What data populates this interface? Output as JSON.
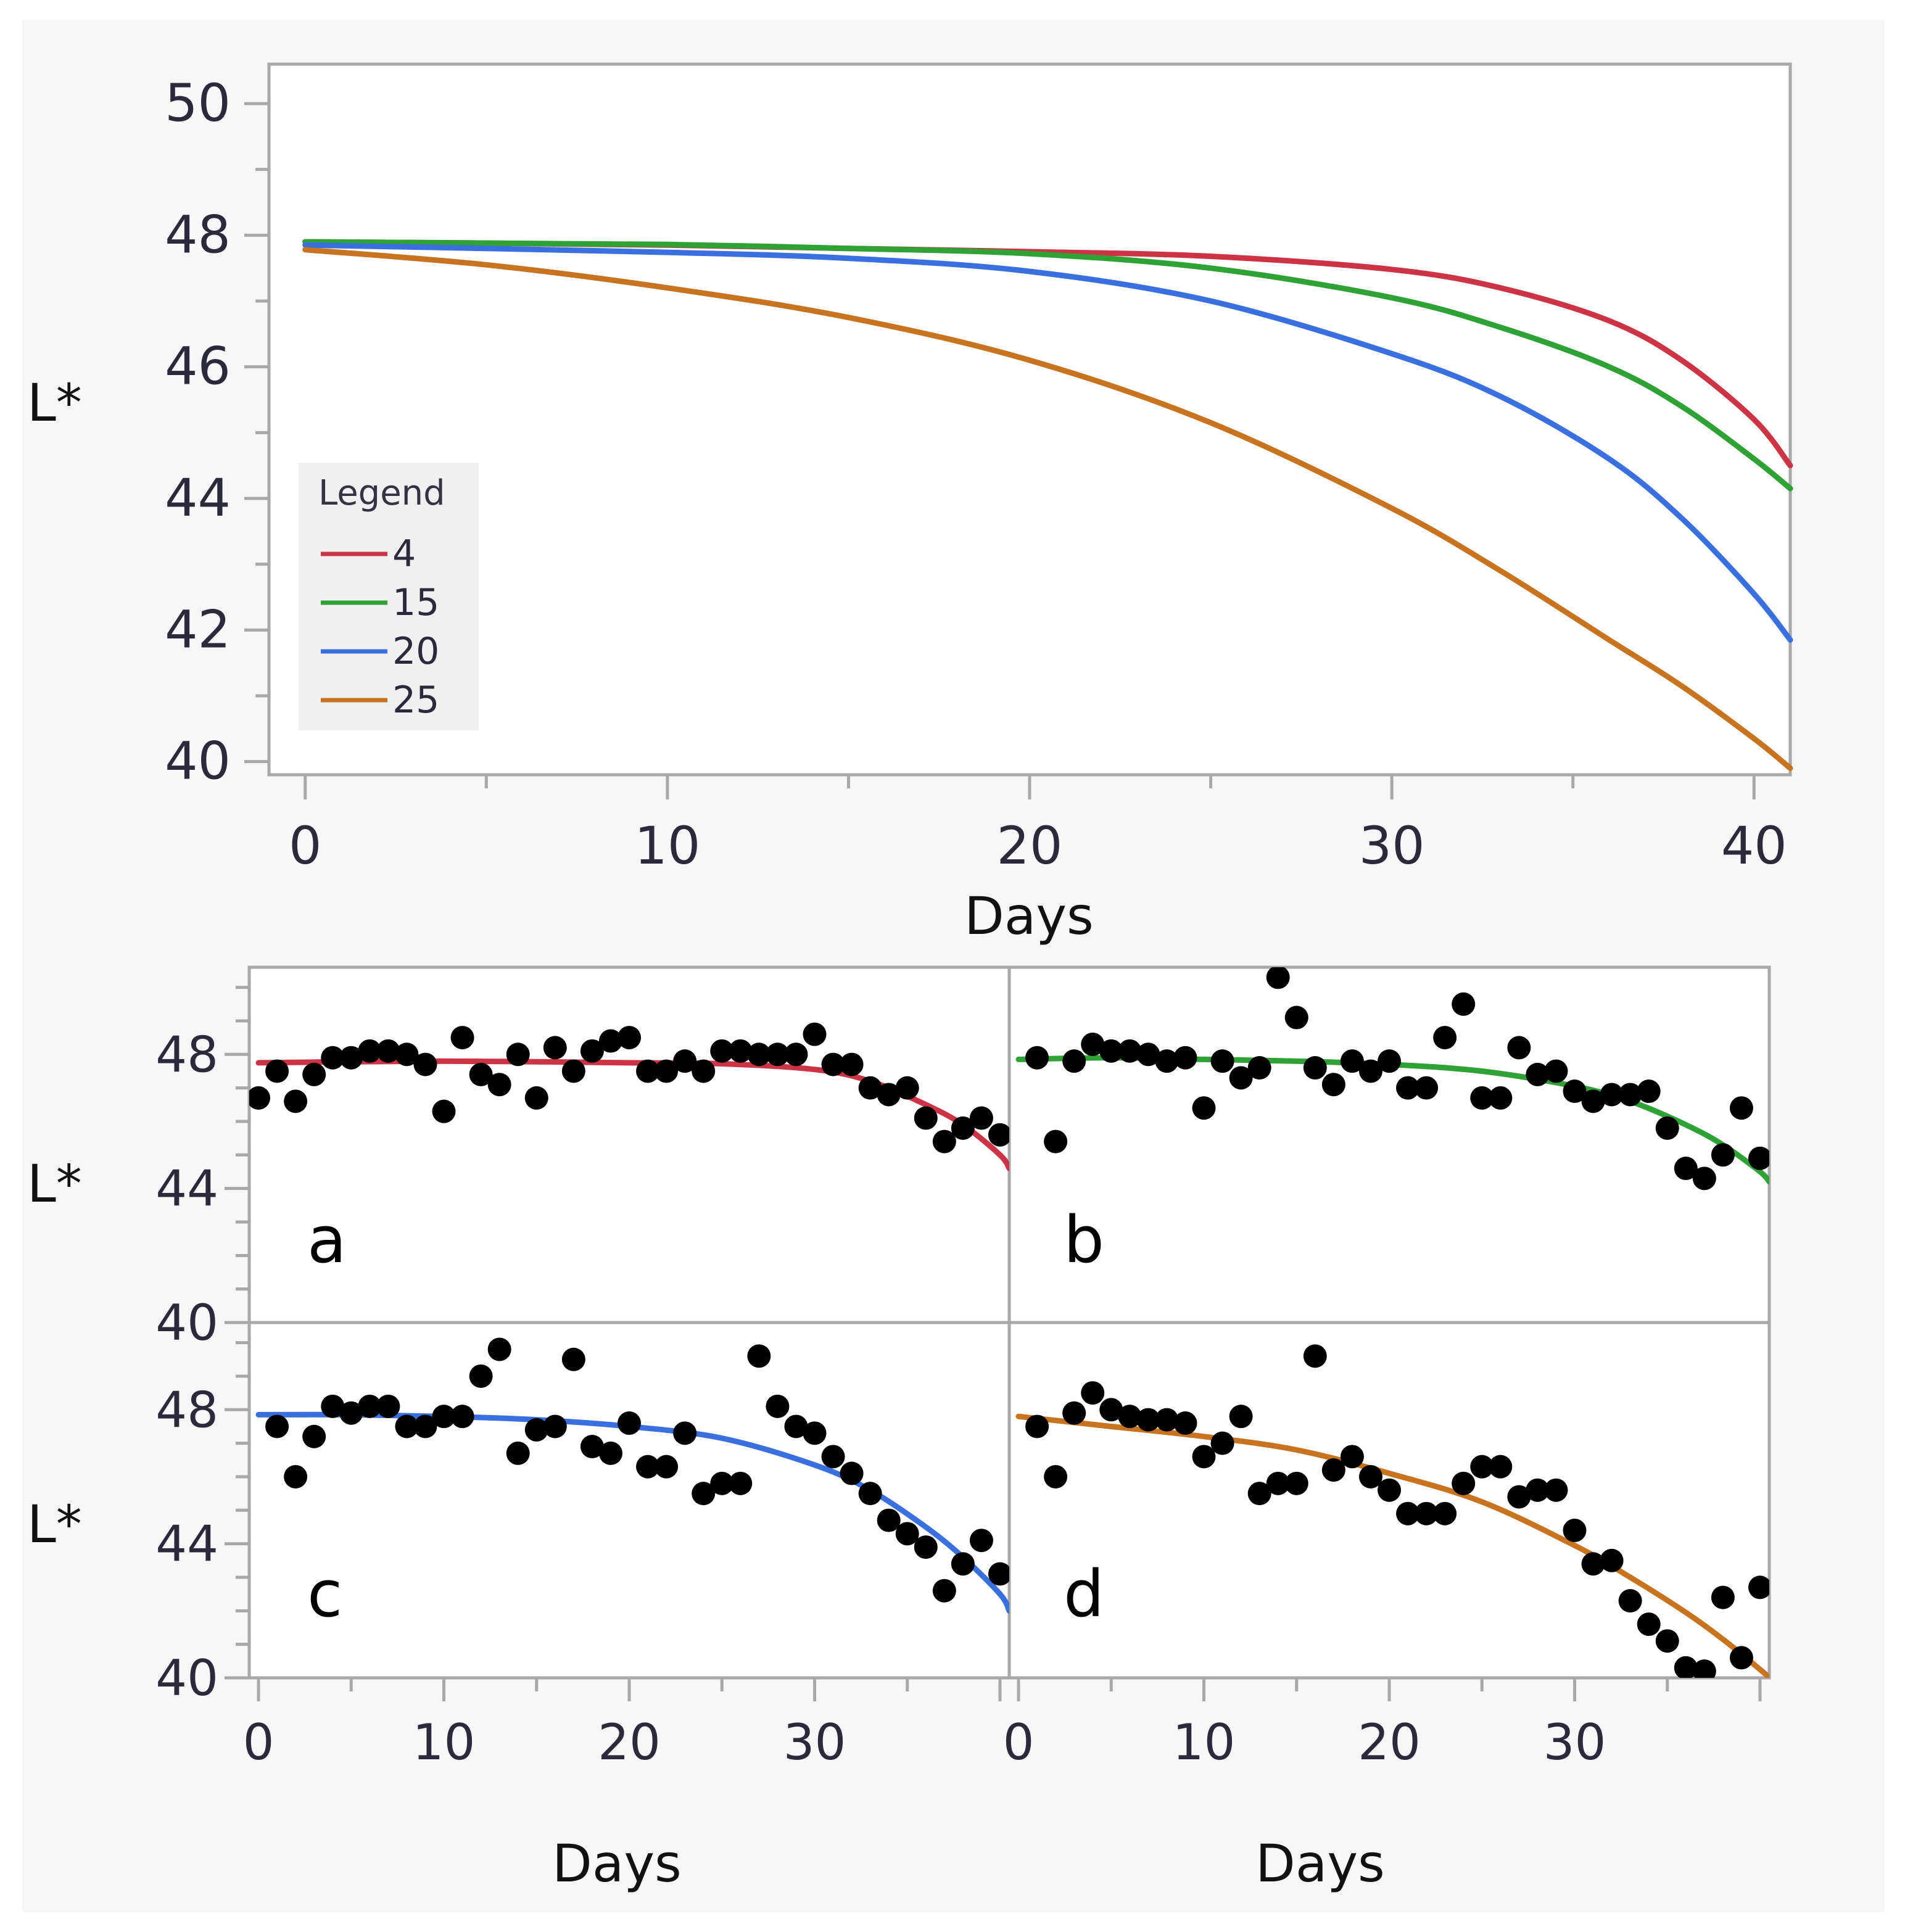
{
  "colors": {
    "figure_bg": "#f7f7f7",
    "plot_bg": "#ffffff",
    "frame": "#a8a8a8",
    "tick_label": "#2a2a3a",
    "axis_title": "#111111",
    "legend_bg": "#f0f0f0",
    "point": "#000000"
  },
  "chart_data": [
    {
      "id": "overview",
      "type": "line",
      "title": "",
      "xlabel": "Days",
      "ylabel": "L*",
      "xlim": [
        -1,
        41
      ],
      "ylim": [
        39.8,
        50.6
      ],
      "xticks": [
        0,
        10,
        20,
        30,
        40
      ],
      "yticks": [
        40,
        42,
        44,
        46,
        48,
        50
      ],
      "legend": {
        "title": "Legend",
        "position": "lower-left",
        "entries": [
          {
            "label": "4",
            "color": "#cc3344"
          },
          {
            "label": "15",
            "color": "#2fa236"
          },
          {
            "label": "20",
            "color": "#3a6fe0"
          },
          {
            "label": "25",
            "color": "#c8731f"
          }
        ]
      },
      "series": [
        {
          "name": "4",
          "color": "#cc3344",
          "x": [
            0,
            5,
            10,
            15,
            20,
            25,
            30,
            33,
            36,
            38,
            40,
            41
          ],
          "y": [
            47.9,
            47.88,
            47.85,
            47.8,
            47.75,
            47.68,
            47.48,
            47.2,
            46.7,
            46.1,
            45.2,
            44.5
          ]
        },
        {
          "name": "15",
          "color": "#2fa236",
          "x": [
            0,
            5,
            10,
            15,
            20,
            25,
            30,
            33,
            36,
            38,
            40,
            41
          ],
          "y": [
            47.9,
            47.88,
            47.86,
            47.8,
            47.72,
            47.5,
            47.05,
            46.6,
            46.0,
            45.4,
            44.6,
            44.15
          ]
        },
        {
          "name": "20",
          "color": "#3a6fe0",
          "x": [
            0,
            5,
            10,
            15,
            20,
            25,
            30,
            33,
            36,
            38,
            40,
            41
          ],
          "y": [
            47.85,
            47.8,
            47.74,
            47.65,
            47.45,
            47.0,
            46.2,
            45.55,
            44.6,
            43.7,
            42.55,
            41.85
          ]
        },
        {
          "name": "25",
          "color": "#c8731f",
          "x": [
            0,
            5,
            10,
            15,
            20,
            25,
            30,
            33,
            36,
            38,
            40,
            41
          ],
          "y": [
            47.78,
            47.55,
            47.2,
            46.75,
            46.1,
            45.15,
            43.85,
            42.9,
            41.85,
            41.15,
            40.35,
            39.9
          ]
        }
      ]
    },
    {
      "id": "a",
      "type": "scatter",
      "panel_label": "a",
      "fit_color": "#cc3344",
      "xlim": [
        -0.5,
        40.5
      ],
      "ylim": [
        40,
        50.6
      ],
      "yticks": [
        40,
        44,
        48
      ],
      "points_x": [
        0,
        1,
        2,
        3,
        4,
        5,
        6,
        7,
        8,
        9,
        10,
        11,
        12,
        13,
        14,
        15,
        16,
        17,
        18,
        19,
        20,
        21,
        22,
        23,
        24,
        25,
        26,
        27,
        28,
        29,
        30,
        31,
        32,
        33,
        34,
        35,
        36,
        37,
        38,
        39,
        40
      ],
      "points_y": [
        46.7,
        47.5,
        46.6,
        47.4,
        47.9,
        47.9,
        48.1,
        48.1,
        48.0,
        47.7,
        46.3,
        48.5,
        47.4,
        47.1,
        48.0,
        46.7,
        48.2,
        47.5,
        48.1,
        48.4,
        48.5,
        47.5,
        47.5,
        47.8,
        47.5,
        48.1,
        48.1,
        48.0,
        48.0,
        48.0,
        48.6,
        47.7,
        47.7,
        47.0,
        46.8,
        47.0,
        46.1,
        45.4,
        45.8,
        46.1,
        45.6
      ],
      "fit_x": [
        0,
        5,
        10,
        15,
        20,
        25,
        30,
        33,
        36,
        38,
        40,
        40.5
      ],
      "fit_y": [
        47.75,
        47.78,
        47.8,
        47.78,
        47.75,
        47.72,
        47.55,
        47.2,
        46.5,
        45.9,
        45.0,
        44.6
      ]
    },
    {
      "id": "b",
      "type": "scatter",
      "panel_label": "b",
      "fit_color": "#2fa236",
      "xlim": [
        -0.5,
        40.5
      ],
      "ylim": [
        40,
        50.6
      ],
      "yticks": [
        40,
        44,
        48
      ],
      "points_x": [
        1,
        2,
        3,
        4,
        5,
        6,
        7,
        8,
        9,
        10,
        11,
        12,
        13,
        14,
        15,
        16,
        17,
        18,
        19,
        20,
        21,
        22,
        23,
        24,
        25,
        26,
        27,
        28,
        29,
        30,
        31,
        32,
        33,
        34,
        35,
        36,
        37,
        38,
        39,
        40
      ],
      "points_y": [
        47.9,
        45.4,
        47.8,
        48.3,
        48.1,
        48.1,
        48.0,
        47.8,
        47.9,
        46.4,
        47.8,
        47.3,
        47.6,
        50.3,
        49.1,
        47.6,
        47.1,
        47.8,
        47.5,
        47.8,
        47.0,
        47.0,
        48.5,
        49.5,
        46.7,
        46.7,
        48.2,
        47.4,
        47.5,
        46.9,
        46.6,
        46.8,
        46.8,
        46.9,
        45.8,
        44.6,
        44.3,
        45.0,
        46.4,
        44.9
      ],
      "fit_x": [
        0,
        5,
        10,
        15,
        20,
        25,
        30,
        33,
        36,
        38,
        40,
        40.5
      ],
      "fit_y": [
        47.85,
        47.9,
        47.85,
        47.8,
        47.7,
        47.5,
        47.05,
        46.6,
        45.9,
        45.3,
        44.5,
        44.2
      ]
    },
    {
      "id": "c",
      "type": "scatter",
      "panel_label": "c",
      "fit_color": "#3a6fe0",
      "xlim": [
        -0.5,
        40.5
      ],
      "ylim": [
        40,
        50.6
      ],
      "yticks": [
        40,
        44,
        48
      ],
      "points_x": [
        1,
        2,
        3,
        4,
        5,
        6,
        7,
        8,
        9,
        10,
        11,
        12,
        13,
        14,
        15,
        16,
        17,
        18,
        19,
        20,
        21,
        22,
        23,
        24,
        25,
        26,
        27,
        28,
        29,
        30,
        31,
        32,
        33,
        34,
        35,
        36,
        37,
        38,
        39,
        40
      ],
      "points_y": [
        47.5,
        46.0,
        47.2,
        48.1,
        47.9,
        48.1,
        48.1,
        47.5,
        47.5,
        47.8,
        47.8,
        49.0,
        49.8,
        46.7,
        47.4,
        47.5,
        49.5,
        46.9,
        46.7,
        47.6,
        46.3,
        46.3,
        47.3,
        45.5,
        45.8,
        45.8,
        49.6,
        48.1,
        47.5,
        47.3,
        46.6,
        46.1,
        45.5,
        44.7,
        44.3,
        43.9,
        42.6,
        43.4,
        44.1,
        43.1
      ],
      "fit_x": [
        0,
        5,
        10,
        15,
        20,
        25,
        30,
        33,
        36,
        38,
        40,
        40.5
      ],
      "fit_y": [
        47.85,
        47.85,
        47.8,
        47.7,
        47.5,
        47.15,
        46.35,
        45.6,
        44.5,
        43.6,
        42.5,
        42.0
      ]
    },
    {
      "id": "d",
      "type": "scatter",
      "panel_label": "d",
      "fit_color": "#c8731f",
      "xlim": [
        -0.5,
        40.5
      ],
      "ylim": [
        40,
        50.6
      ],
      "yticks": [
        40,
        44,
        48
      ],
      "points_x": [
        1,
        2,
        3,
        4,
        5,
        6,
        7,
        8,
        9,
        10,
        11,
        12,
        13,
        14,
        15,
        16,
        17,
        18,
        19,
        20,
        21,
        22,
        23,
        24,
        25,
        26,
        27,
        28,
        29,
        30,
        31,
        32,
        33,
        34,
        35,
        36,
        37,
        38,
        39,
        40
      ],
      "points_y": [
        47.5,
        46.0,
        47.9,
        48.5,
        48.0,
        47.8,
        47.7,
        47.7,
        47.6,
        46.6,
        47.0,
        47.8,
        45.5,
        45.8,
        45.8,
        49.6,
        46.2,
        46.6,
        46.0,
        45.6,
        44.9,
        44.9,
        44.9,
        45.8,
        46.3,
        46.3,
        45.4,
        45.6,
        45.6,
        44.4,
        43.4,
        43.5,
        42.3,
        41.6,
        41.1,
        40.3,
        40.2,
        42.4,
        40.6,
        42.7
      ],
      "fit_x": [
        0,
        5,
        10,
        15,
        20,
        25,
        30,
        33,
        36,
        38,
        40,
        40.5
      ],
      "fit_y": [
        47.8,
        47.5,
        47.2,
        46.8,
        46.1,
        45.25,
        43.95,
        43.0,
        41.95,
        41.15,
        40.25,
        40.0
      ]
    }
  ],
  "facet_axes": {
    "ylabel": "L*",
    "xlabel_left": "Days",
    "xlabel_right": "Days",
    "xticks": [
      0,
      10,
      20,
      30
    ]
  }
}
